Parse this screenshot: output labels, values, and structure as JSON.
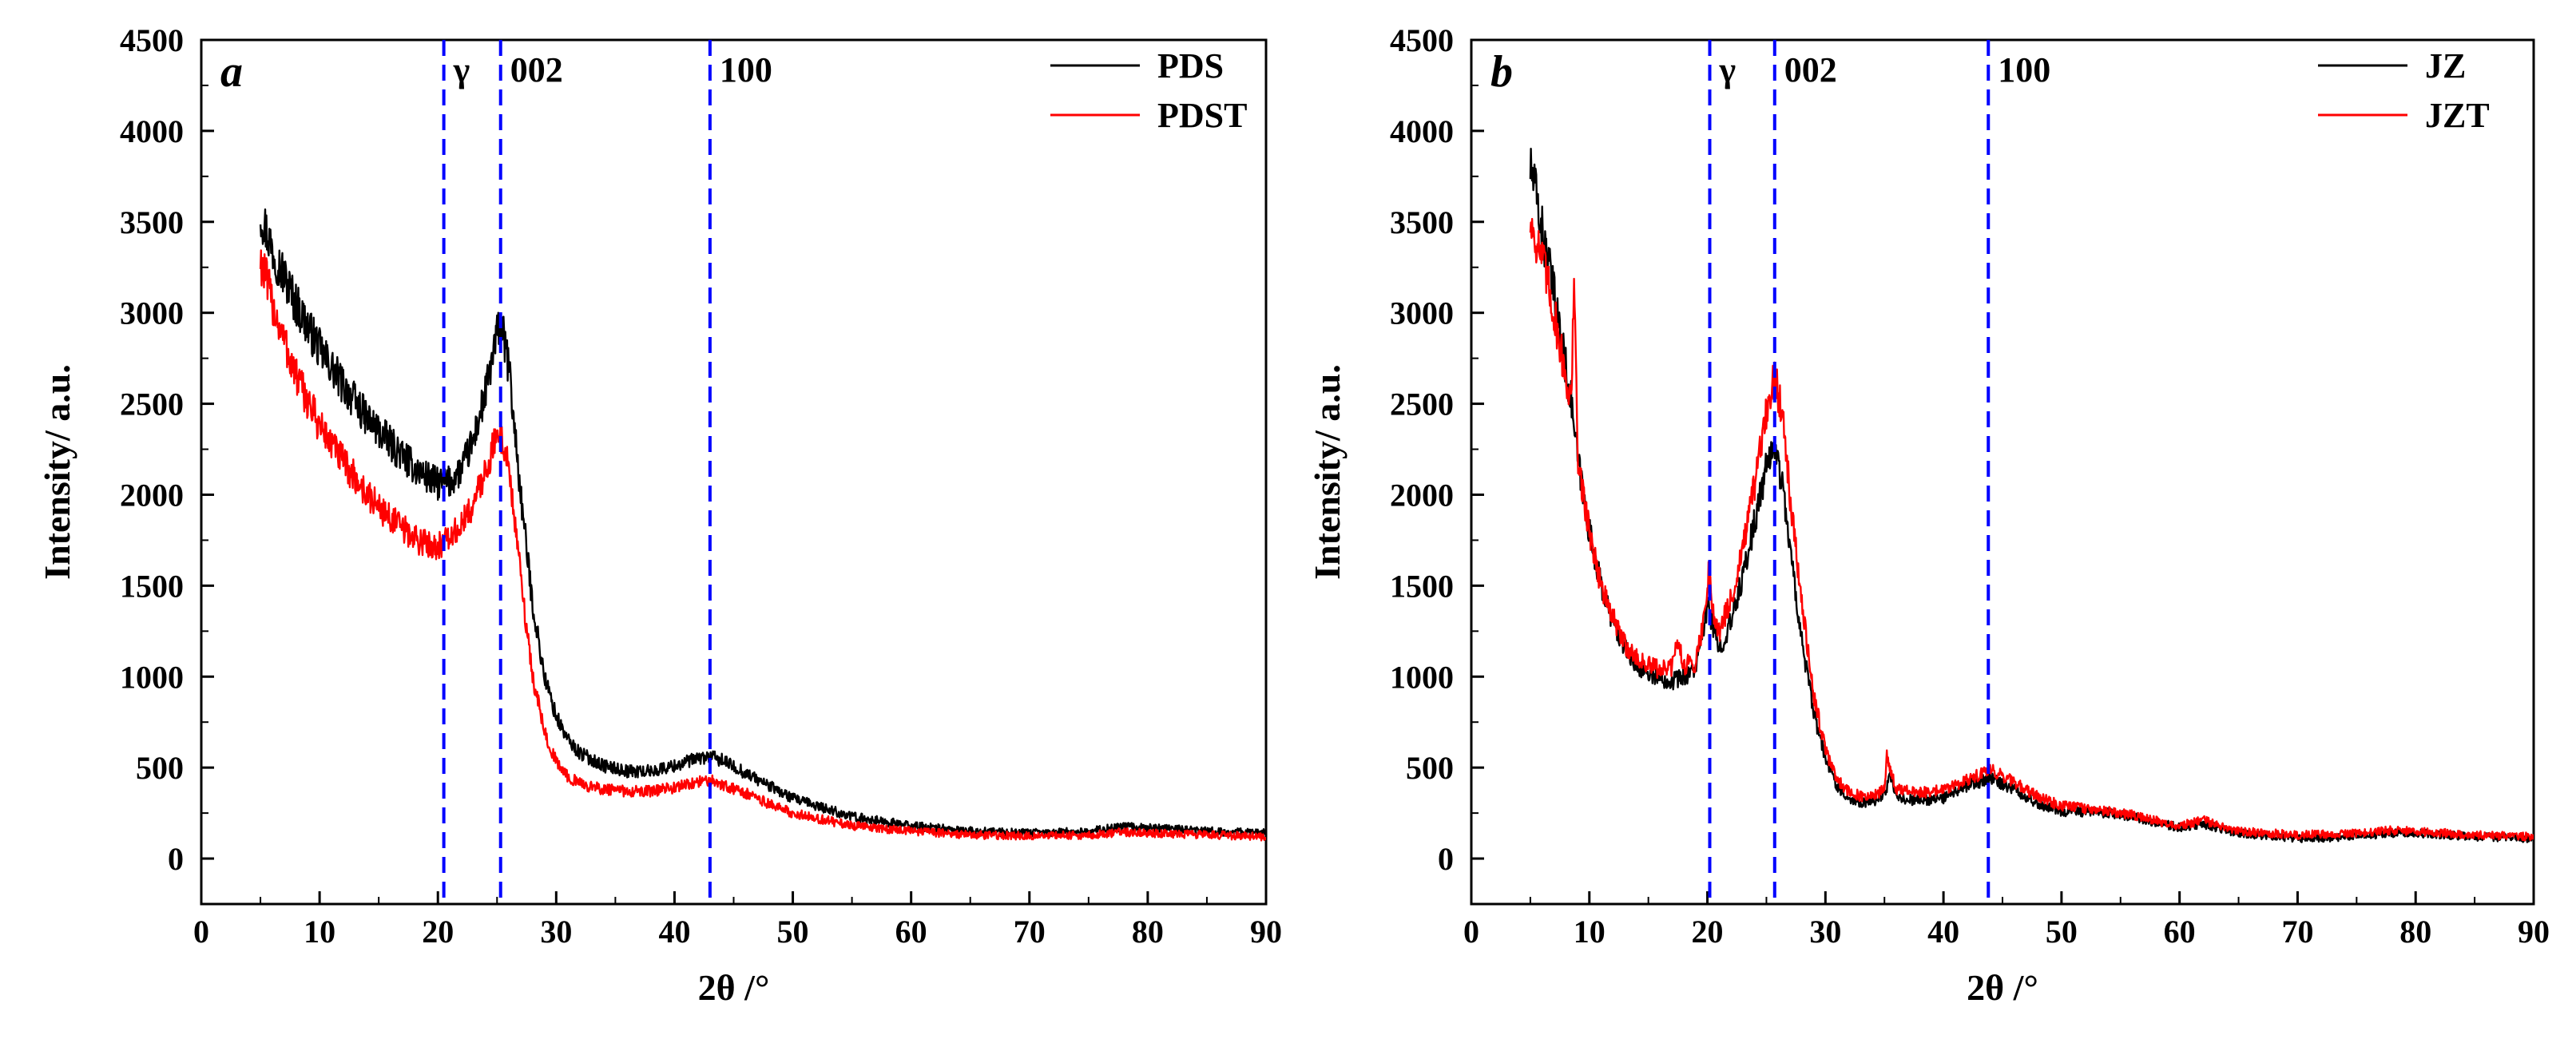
{
  "colors": {
    "series_black": "#000000",
    "series_red": "#ff0000",
    "ref_line": "#0000ff"
  },
  "chart_data": [
    {
      "type": "line",
      "panel_label": "a",
      "xlabel": "2θ /°",
      "ylabel": "Intensity/ a.u.",
      "xlim": [
        0,
        90
      ],
      "ylim": [
        -250,
        4500
      ],
      "xticks": [
        0,
        10,
        20,
        30,
        40,
        50,
        60,
        70,
        80,
        90
      ],
      "yticks": [
        0,
        500,
        1000,
        1500,
        2000,
        2500,
        3000,
        3500,
        4000,
        4500
      ],
      "legend_position": "top-right",
      "reference_lines": [
        {
          "x": 20.5,
          "label": "γ"
        },
        {
          "x": 25.3,
          "label": "002"
        },
        {
          "x": 43.0,
          "label": "100"
        }
      ],
      "series": [
        {
          "name": "PDS",
          "color": "#000000",
          "x": [
            5,
            6,
            7,
            8,
            10,
            12,
            14,
            16,
            18,
            19,
            20,
            21,
            22,
            23,
            24,
            25,
            25.3,
            26,
            27,
            28,
            29,
            30,
            31,
            32,
            34,
            36,
            38,
            40,
            42,
            43,
            44,
            46,
            48,
            50,
            55,
            60,
            65,
            70,
            75,
            78,
            80,
            85,
            90
          ],
          "y": [
            3550,
            3350,
            3200,
            3050,
            2800,
            2600,
            2420,
            2280,
            2150,
            2100,
            2060,
            2070,
            2140,
            2300,
            2550,
            2880,
            2950,
            2700,
            2000,
            1400,
            1000,
            780,
            650,
            580,
            510,
            480,
            480,
            510,
            550,
            560,
            540,
            470,
            400,
            330,
            230,
            180,
            150,
            140,
            150,
            175,
            170,
            150,
            140
          ]
        },
        {
          "name": "PDST",
          "color": "#ff0000",
          "x": [
            5,
            6,
            7,
            8,
            10,
            12,
            14,
            16,
            18,
            19,
            20,
            21,
            22,
            23,
            24,
            25,
            25.3,
            26,
            27,
            28,
            29,
            30,
            31,
            32,
            34,
            36,
            38,
            40,
            42,
            43,
            44,
            46,
            48,
            50,
            55,
            60,
            65,
            70,
            75,
            78,
            80,
            85,
            90
          ],
          "y": [
            3300,
            3050,
            2850,
            2650,
            2380,
            2180,
            2000,
            1870,
            1760,
            1730,
            1720,
            1760,
            1830,
            1950,
            2130,
            2320,
            2340,
            2150,
            1550,
            1000,
            700,
            530,
            450,
            410,
            380,
            370,
            370,
            390,
            420,
            430,
            410,
            360,
            300,
            250,
            180,
            150,
            130,
            125,
            130,
            145,
            140,
            130,
            120
          ]
        }
      ]
    },
    {
      "type": "line",
      "panel_label": "b",
      "xlabel": "2θ /°",
      "ylabel": "Intensity/ a.u.",
      "xlim": [
        0,
        90
      ],
      "ylim": [
        -250,
        4500
      ],
      "xticks": [
        0,
        10,
        20,
        30,
        40,
        50,
        60,
        70,
        80,
        90
      ],
      "yticks": [
        0,
        500,
        1000,
        1500,
        2000,
        2500,
        3000,
        3500,
        4000,
        4500
      ],
      "legend_position": "top-right",
      "reference_lines": [
        {
          "x": 20.2,
          "label": "γ"
        },
        {
          "x": 25.7,
          "label": "002"
        },
        {
          "x": 43.8,
          "label": "100"
        }
      ],
      "series": [
        {
          "name": "JZ",
          "color": "#000000",
          "x": [
            5,
            5.5,
            6,
            7,
            8,
            8.5,
            9,
            10,
            11,
            12,
            13,
            14,
            15,
            16,
            17,
            18,
            19,
            19.8,
            20.1,
            20.5,
            21,
            22,
            23,
            24,
            25,
            25.7,
            26.5,
            27,
            28,
            29,
            30,
            31,
            32,
            33,
            34,
            35,
            35.5,
            36,
            38,
            40,
            42,
            44,
            46,
            48,
            50,
            54,
            56,
            60,
            62,
            65,
            70,
            75,
            78,
            80,
            85,
            90
          ],
          "y": [
            3800,
            3650,
            3450,
            3100,
            2700,
            2500,
            2200,
            1800,
            1500,
            1300,
            1150,
            1070,
            1020,
            990,
            980,
            1000,
            1050,
            1300,
            1400,
            1250,
            1150,
            1300,
            1550,
            1850,
            2150,
            2280,
            2000,
            1700,
            1200,
            800,
            550,
            400,
            330,
            310,
            310,
            360,
            450,
            330,
            320,
            330,
            400,
            440,
            380,
            300,
            260,
            250,
            230,
            170,
            190,
            140,
            110,
            120,
            140,
            140,
            120,
            110
          ]
        },
        {
          "name": "JZT",
          "color": "#ff0000",
          "x": [
            5,
            5.5,
            6,
            7,
            8,
            8.5,
            8.7,
            9,
            10,
            11,
            12,
            13,
            14,
            15,
            16,
            17,
            17.5,
            18,
            19,
            19.8,
            20.1,
            20.5,
            21,
            22,
            23,
            24,
            25,
            25.7,
            26.5,
            27,
            28,
            29,
            30,
            31,
            32,
            33,
            34,
            35,
            35.2,
            36,
            38,
            40,
            42,
            44,
            46,
            48,
            50,
            54,
            56,
            60,
            62,
            65,
            70,
            75,
            78,
            80,
            85,
            90
          ],
          "y": [
            3500,
            3400,
            3300,
            3000,
            2650,
            2500,
            3250,
            2200,
            1800,
            1500,
            1320,
            1180,
            1100,
            1060,
            1040,
            1050,
            1200,
            1060,
            1080,
            1350,
            1600,
            1350,
            1250,
            1420,
            1700,
            2050,
            2450,
            2650,
            2400,
            2000,
            1400,
            900,
            600,
            430,
            370,
            340,
            340,
            380,
            560,
            380,
            360,
            380,
            430,
            490,
            420,
            340,
            290,
            260,
            240,
            180,
            210,
            150,
            130,
            140,
            155,
            150,
            130,
            120
          ]
        }
      ]
    }
  ]
}
